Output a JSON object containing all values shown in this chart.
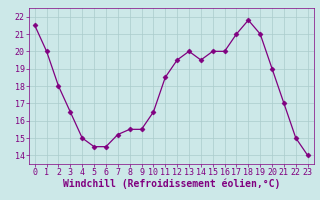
{
  "x": [
    0,
    1,
    2,
    3,
    4,
    5,
    6,
    7,
    8,
    9,
    10,
    11,
    12,
    13,
    14,
    15,
    16,
    17,
    18,
    19,
    20,
    21,
    22,
    23
  ],
  "y": [
    21.5,
    20.0,
    18.0,
    16.5,
    15.0,
    14.5,
    14.5,
    15.2,
    15.5,
    15.5,
    16.5,
    18.5,
    19.5,
    20.0,
    19.5,
    20.0,
    20.0,
    21.0,
    21.8,
    21.0,
    19.0,
    17.0,
    15.0,
    14.0
  ],
  "line_color": "#800080",
  "marker": "D",
  "marker_size": 2.5,
  "bg_color": "#cce8e8",
  "grid_color": "#aacccc",
  "xlabel": "Windchill (Refroidissement éolien,°C)",
  "xlim": [
    -0.5,
    23.5
  ],
  "ylim": [
    13.5,
    22.5
  ],
  "yticks": [
    14,
    15,
    16,
    17,
    18,
    19,
    20,
    21,
    22
  ],
  "xticks": [
    0,
    1,
    2,
    3,
    4,
    5,
    6,
    7,
    8,
    9,
    10,
    11,
    12,
    13,
    14,
    15,
    16,
    17,
    18,
    19,
    20,
    21,
    22,
    23
  ],
  "tick_labelsize": 6,
  "xlabel_fontsize": 7
}
